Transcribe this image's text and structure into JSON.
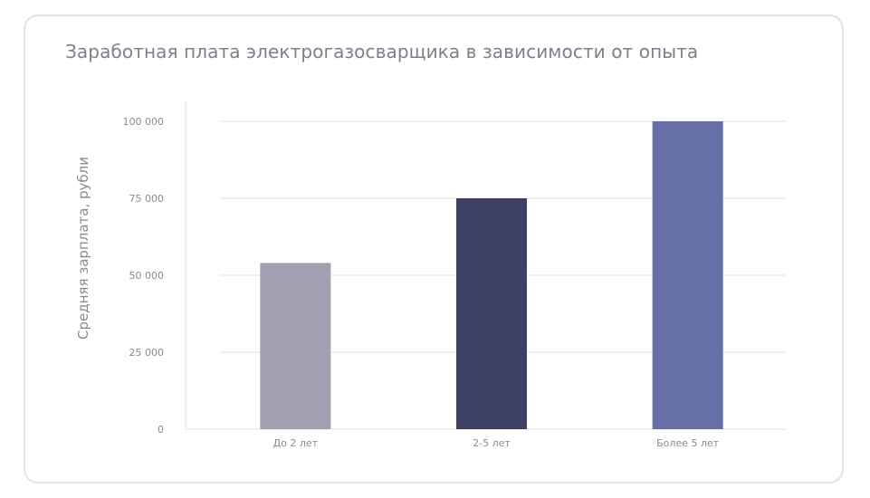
{
  "chart_data": {
    "type": "bar",
    "title": "Заработная плата электрогазосварщика в зависимости от опыта",
    "xlabel": "",
    "ylabel": "Средняя зарплата, рубли",
    "categories": [
      "До 2 лет",
      "2-5 лет",
      "Более 5 лет"
    ],
    "values": [
      54000,
      75000,
      100000
    ],
    "colors": [
      "#a0a0b2",
      "#3e4163",
      "#6670a8"
    ],
    "ylim": [
      0,
      100000
    ],
    "yticks": [
      0,
      25000,
      50000,
      75000,
      100000
    ],
    "ytick_labels": [
      "0",
      "25 000",
      "50 000",
      "75 000",
      "100 000"
    ],
    "grid": true,
    "legend": "none"
  }
}
